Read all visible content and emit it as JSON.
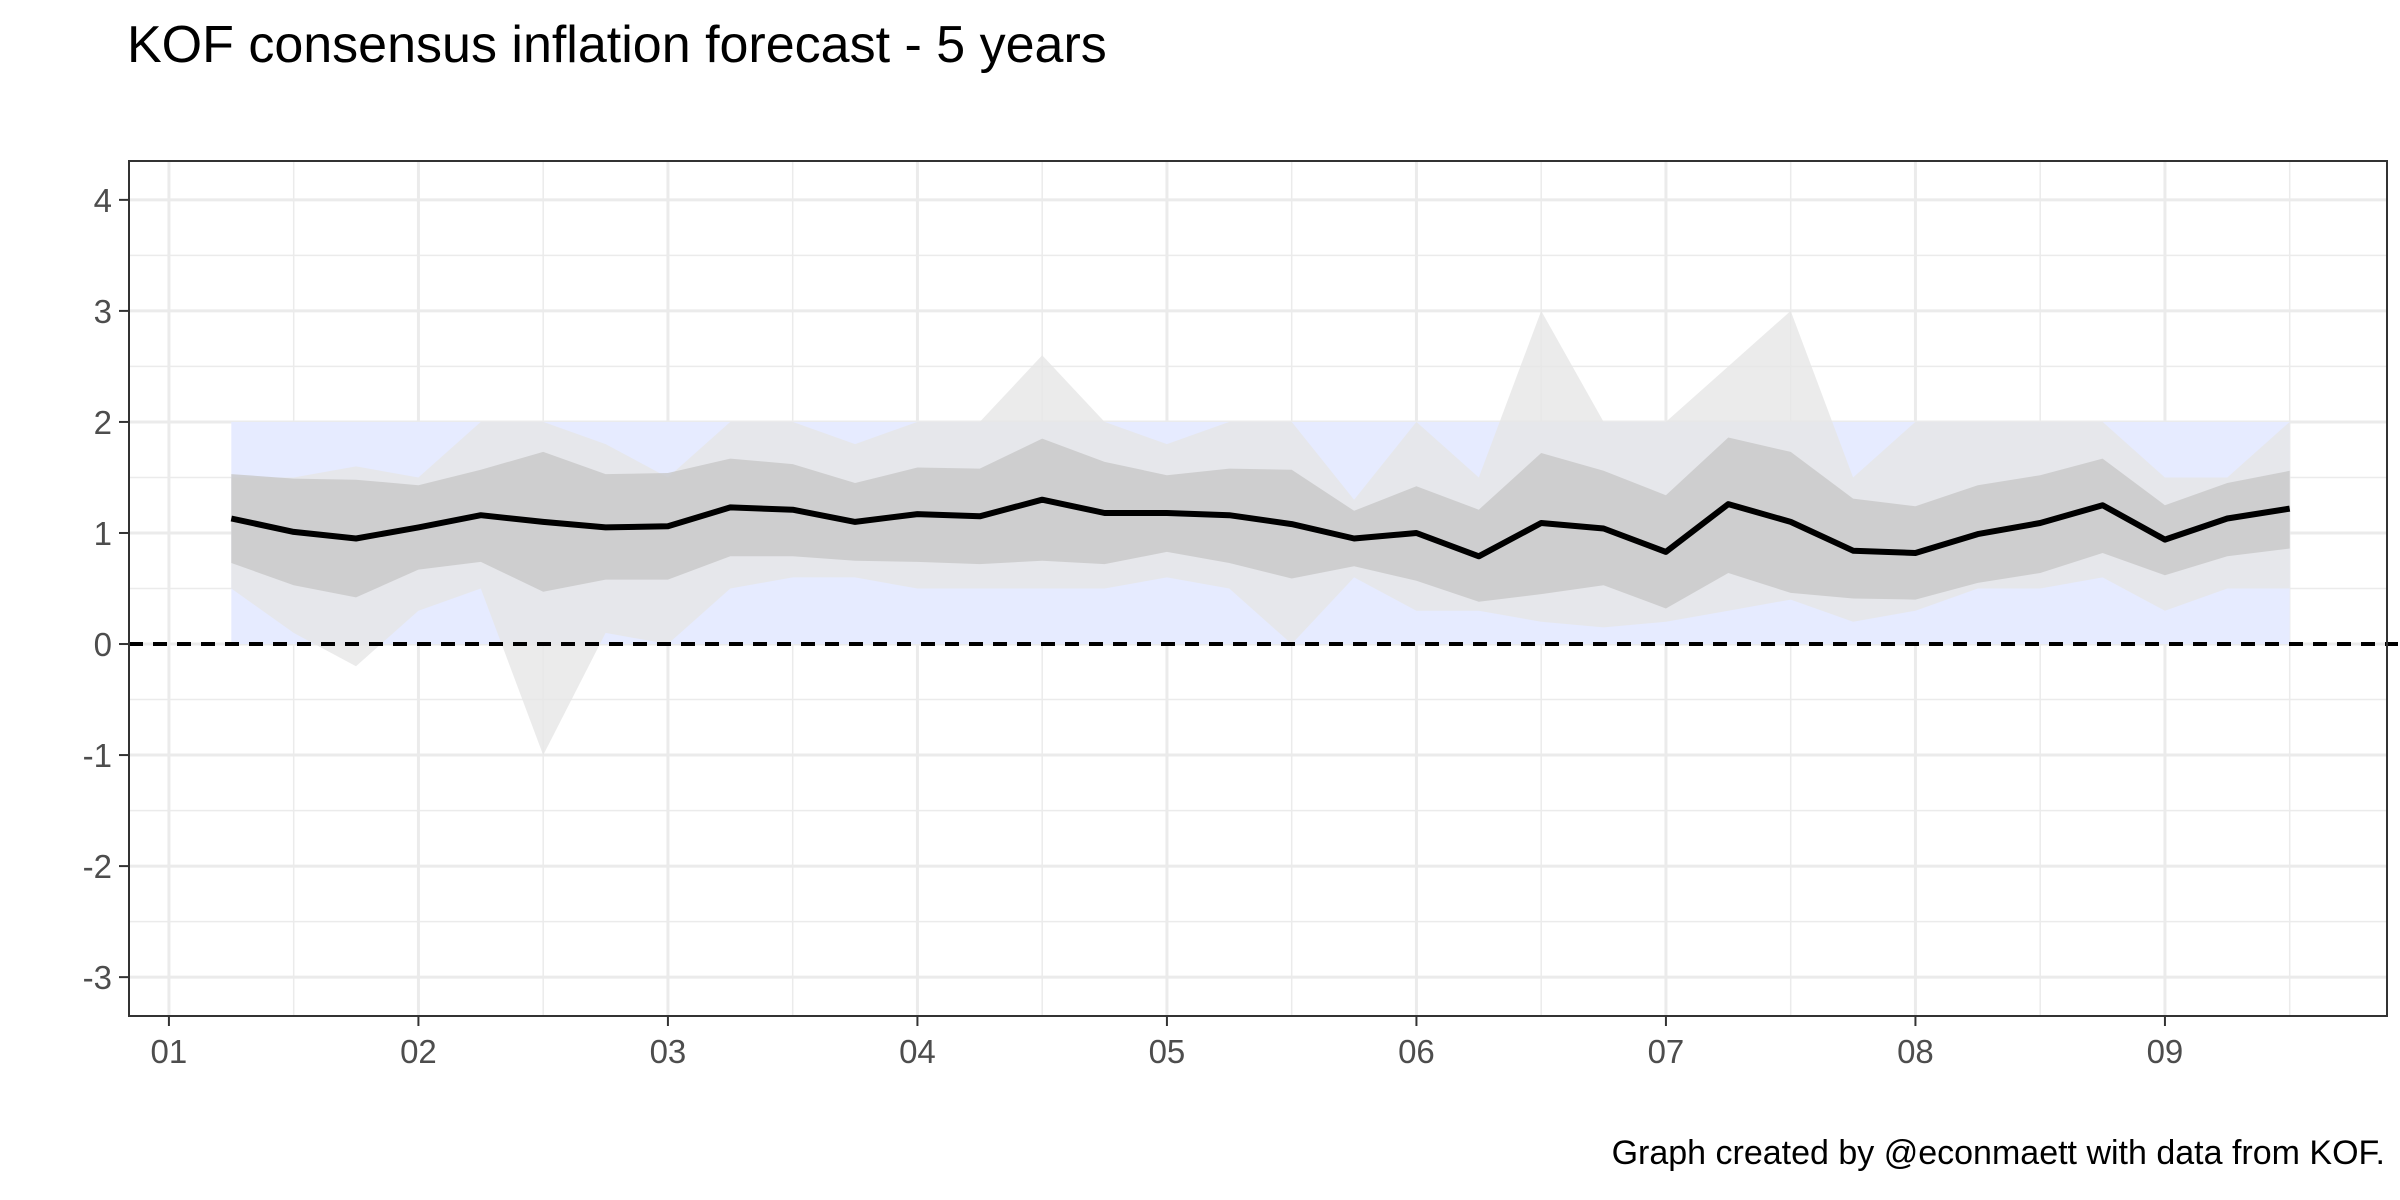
{
  "chart_data": {
    "type": "line",
    "title": "KOF consensus inflation forecast - 5 years",
    "caption": "Graph created by @econmaett with data from KOF.",
    "xlabel": "",
    "ylabel": "",
    "xlim": [
      2000.84,
      2009.89
    ],
    "ylim": [
      -3.35,
      4.35
    ],
    "x_ticks": [
      2001,
      2002,
      2003,
      2004,
      2005,
      2006,
      2007,
      2008,
      2009
    ],
    "x_tick_labels": [
      "01",
      "02",
      "03",
      "04",
      "05",
      "06",
      "07",
      "08",
      "09"
    ],
    "y_ticks": [
      -3,
      -2,
      -1,
      0,
      1,
      2,
      3,
      4
    ],
    "y_tick_labels": [
      "-3",
      "-2",
      "-1",
      "0",
      "1",
      "2",
      "3",
      "4"
    ],
    "reference_line": {
      "y": 0,
      "style": "dashed",
      "color": "#000000"
    },
    "target_band": {
      "x_start": 2001.25,
      "x_end": 2009.5,
      "ymin": 0,
      "ymax": 2,
      "color": "#e6ebff"
    },
    "grid": true,
    "legend": "none",
    "x": [
      2001.25,
      2001.5,
      2001.75,
      2002.0,
      2002.25,
      2002.5,
      2002.75,
      2003.0,
      2003.25,
      2003.5,
      2003.75,
      2004.0,
      2004.25,
      2004.5,
      2004.75,
      2005.0,
      2005.25,
      2005.5,
      2005.75,
      2006.0,
      2006.25,
      2006.5,
      2006.75,
      2007.0,
      2007.25,
      2007.5,
      2007.75,
      2008.0,
      2008.25,
      2008.5,
      2008.75,
      2009.0,
      2009.25,
      2009.5
    ],
    "series": [
      {
        "role": "range_min_max",
        "color": "#e6e6e6",
        "lower": [
          0.5,
          0.1,
          -0.2,
          0.3,
          0.5,
          -1.0,
          0.1,
          0.0,
          0.5,
          0.6,
          0.6,
          0.5,
          0.5,
          0.5,
          0.5,
          0.6,
          0.5,
          0.0,
          0.6,
          0.3,
          0.3,
          0.2,
          0.15,
          0.2,
          0.3,
          0.4,
          0.2,
          0.3,
          0.5,
          0.5,
          0.6,
          0.3,
          0.5,
          0.5
        ],
        "upper": [
          1.5,
          1.5,
          1.6,
          1.5,
          2.0,
          2.0,
          1.8,
          1.5,
          2.0,
          2.0,
          1.8,
          2.0,
          2.0,
          2.6,
          2.0,
          1.8,
          2.0,
          2.0,
          1.3,
          2.0,
          1.5,
          3.0,
          2.0,
          2.0,
          2.5,
          3.0,
          1.5,
          2.0,
          2.0,
          2.0,
          2.0,
          1.5,
          1.5,
          2.0
        ]
      },
      {
        "role": "range_std",
        "color": "#c8c8c8",
        "lower": [
          0.73,
          0.53,
          0.42,
          0.67,
          0.74,
          0.47,
          0.58,
          0.58,
          0.79,
          0.79,
          0.75,
          0.74,
          0.72,
          0.75,
          0.72,
          0.83,
          0.73,
          0.59,
          0.7,
          0.57,
          0.38,
          0.45,
          0.53,
          0.32,
          0.64,
          0.46,
          0.41,
          0.4,
          0.55,
          0.64,
          0.82,
          0.62,
          0.79,
          0.86
        ],
        "upper": [
          1.53,
          1.49,
          1.48,
          1.43,
          1.57,
          1.73,
          1.53,
          1.54,
          1.67,
          1.62,
          1.45,
          1.59,
          1.58,
          1.85,
          1.64,
          1.52,
          1.58,
          1.57,
          1.2,
          1.42,
          1.21,
          1.72,
          1.56,
          1.34,
          1.86,
          1.73,
          1.31,
          1.24,
          1.43,
          1.52,
          1.67,
          1.25,
          1.45,
          1.56
        ]
      },
      {
        "role": "mean",
        "color": "#000000",
        "values": [
          1.13,
          1.01,
          0.95,
          1.05,
          1.16,
          1.1,
          1.05,
          1.06,
          1.23,
          1.21,
          1.1,
          1.17,
          1.15,
          1.3,
          1.18,
          1.18,
          1.16,
          1.08,
          0.95,
          1.0,
          0.79,
          1.09,
          1.04,
          0.83,
          1.26,
          1.1,
          0.84,
          0.82,
          0.99,
          1.09,
          1.25,
          0.94,
          1.13,
          1.22
        ]
      }
    ]
  }
}
